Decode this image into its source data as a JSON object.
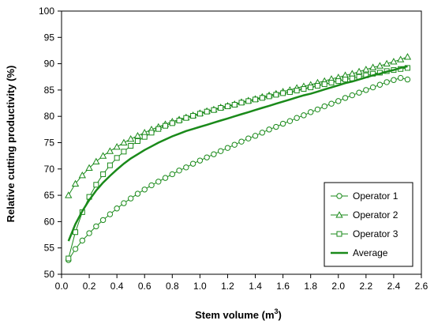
{
  "chart_data": {
    "type": "line",
    "xlabel_text": "Stem volume (m",
    "xlabel_sup": "3",
    "xlabel_close": ")",
    "ylabel": "Relative cutting productivity (%)",
    "xlim": [
      0,
      2.6
    ],
    "ylim": [
      50,
      100
    ],
    "x_ticks": [
      "0.0",
      "0.2",
      "0.4",
      "0.6",
      "0.8",
      "1.0",
      "1.2",
      "1.4",
      "1.6",
      "1.8",
      "2.0",
      "2.2",
      "2.4",
      "2.6"
    ],
    "y_ticks": [
      "50",
      "55",
      "60",
      "65",
      "70",
      "75",
      "80",
      "85",
      "90",
      "95",
      "100"
    ],
    "grid": false,
    "legend_position": "bottom-right",
    "line_color": "#1a8a1a",
    "series": [
      {
        "name": "Operator 1",
        "marker": "circle",
        "x": [
          0.05,
          0.1,
          0.15,
          0.2,
          0.25,
          0.3,
          0.35,
          0.4,
          0.45,
          0.5,
          0.55,
          0.6,
          0.65,
          0.7,
          0.75,
          0.8,
          0.85,
          0.9,
          0.95,
          1.0,
          1.05,
          1.1,
          1.15,
          1.2,
          1.25,
          1.3,
          1.35,
          1.4,
          1.45,
          1.5,
          1.55,
          1.6,
          1.65,
          1.7,
          1.75,
          1.8,
          1.85,
          1.9,
          1.95,
          2.0,
          2.05,
          2.1,
          2.15,
          2.2,
          2.25,
          2.3,
          2.35,
          2.4,
          2.45,
          2.5
        ],
        "values": [
          52.7,
          54.8,
          56.4,
          57.8,
          59.1,
          60.3,
          61.4,
          62.5,
          63.5,
          64.4,
          65.3,
          66.1,
          66.9,
          67.6,
          68.3,
          69.0,
          69.7,
          70.3,
          71.0,
          71.6,
          72.2,
          72.8,
          73.4,
          74.0,
          74.6,
          75.2,
          75.8,
          76.3,
          76.9,
          77.5,
          78.0,
          78.6,
          79.1,
          79.7,
          80.2,
          80.8,
          81.3,
          81.9,
          82.4,
          82.9,
          83.5,
          84.0,
          84.5,
          85.0,
          85.5,
          86.0,
          86.5,
          86.9,
          87.3,
          87.0
        ]
      },
      {
        "name": "Operator 2",
        "marker": "triangle",
        "x": [
          0.05,
          0.1,
          0.15,
          0.2,
          0.25,
          0.3,
          0.35,
          0.4,
          0.45,
          0.5,
          0.55,
          0.6,
          0.65,
          0.7,
          0.75,
          0.8,
          0.85,
          0.9,
          0.95,
          1.0,
          1.05,
          1.1,
          1.15,
          1.2,
          1.25,
          1.3,
          1.35,
          1.4,
          1.45,
          1.5,
          1.55,
          1.6,
          1.65,
          1.7,
          1.75,
          1.8,
          1.85,
          1.9,
          1.95,
          2.0,
          2.05,
          2.1,
          2.15,
          2.2,
          2.25,
          2.3,
          2.35,
          2.4,
          2.45,
          2.5
        ],
        "values": [
          65.0,
          67.2,
          68.8,
          70.2,
          71.4,
          72.5,
          73.4,
          74.2,
          75.0,
          75.7,
          76.3,
          76.9,
          77.5,
          78.0,
          78.5,
          79.0,
          79.4,
          79.8,
          80.2,
          80.6,
          81.0,
          81.3,
          81.7,
          82.0,
          82.3,
          82.7,
          83.0,
          83.3,
          83.7,
          84.0,
          84.3,
          84.7,
          85.0,
          85.4,
          85.7,
          86.0,
          86.4,
          86.7,
          87.1,
          87.4,
          87.8,
          88.1,
          88.5,
          88.9,
          89.3,
          89.6,
          90.0,
          90.4,
          90.8,
          91.3
        ]
      },
      {
        "name": "Operator 3",
        "marker": "square",
        "x": [
          0.05,
          0.1,
          0.15,
          0.2,
          0.25,
          0.3,
          0.35,
          0.4,
          0.45,
          0.5,
          0.55,
          0.6,
          0.65,
          0.7,
          0.75,
          0.8,
          0.85,
          0.9,
          0.95,
          1.0,
          1.05,
          1.1,
          1.15,
          1.2,
          1.25,
          1.3,
          1.35,
          1.4,
          1.45,
          1.5,
          1.55,
          1.6,
          1.65,
          1.7,
          1.75,
          1.8,
          1.85,
          1.9,
          1.95,
          2.0,
          2.05,
          2.1,
          2.15,
          2.2,
          2.25,
          2.3,
          2.35,
          2.4,
          2.45,
          2.5
        ],
        "values": [
          53.0,
          58.0,
          61.8,
          64.7,
          67.0,
          69.0,
          70.7,
          72.1,
          73.3,
          74.4,
          75.3,
          76.1,
          76.9,
          77.6,
          78.2,
          78.7,
          79.2,
          79.7,
          80.1,
          80.5,
          80.9,
          81.2,
          81.6,
          81.9,
          82.2,
          82.6,
          82.9,
          83.2,
          83.5,
          83.8,
          84.1,
          84.4,
          84.6,
          84.9,
          85.2,
          85.5,
          85.8,
          86.1,
          86.4,
          86.7,
          87.0,
          87.2,
          87.5,
          87.8,
          88.1,
          88.3,
          88.6,
          88.8,
          89.0,
          89.2
        ]
      },
      {
        "name": "Average",
        "marker": "none",
        "x": [
          0.05,
          0.1,
          0.15,
          0.2,
          0.25,
          0.3,
          0.35,
          0.4,
          0.45,
          0.5,
          0.55,
          0.6,
          0.65,
          0.7,
          0.75,
          0.8,
          0.85,
          0.9,
          0.95,
          1.0,
          1.05,
          1.1,
          1.15,
          1.2,
          1.25,
          1.3,
          1.35,
          1.4,
          1.45,
          1.5,
          1.55,
          1.6,
          1.65,
          1.7,
          1.75,
          1.8,
          1.85,
          1.9,
          1.95,
          2.0,
          2.05,
          2.1,
          2.15,
          2.2,
          2.25,
          2.3,
          2.35,
          2.4,
          2.45,
          2.5
        ],
        "values": [
          56.3,
          59.5,
          62.0,
          64.1,
          65.9,
          67.4,
          68.7,
          69.9,
          71.0,
          72.0,
          72.8,
          73.6,
          74.3,
          75.0,
          75.6,
          76.2,
          76.7,
          77.2,
          77.6,
          78.0,
          78.4,
          78.8,
          79.2,
          79.6,
          80.0,
          80.4,
          80.8,
          81.2,
          81.6,
          82.0,
          82.4,
          82.8,
          83.2,
          83.6,
          84.0,
          84.3,
          84.7,
          85.1,
          85.5,
          85.9,
          86.3,
          86.6,
          87.0,
          87.4,
          87.8,
          88.1,
          88.5,
          88.8,
          89.2,
          89.5
        ]
      }
    ]
  }
}
